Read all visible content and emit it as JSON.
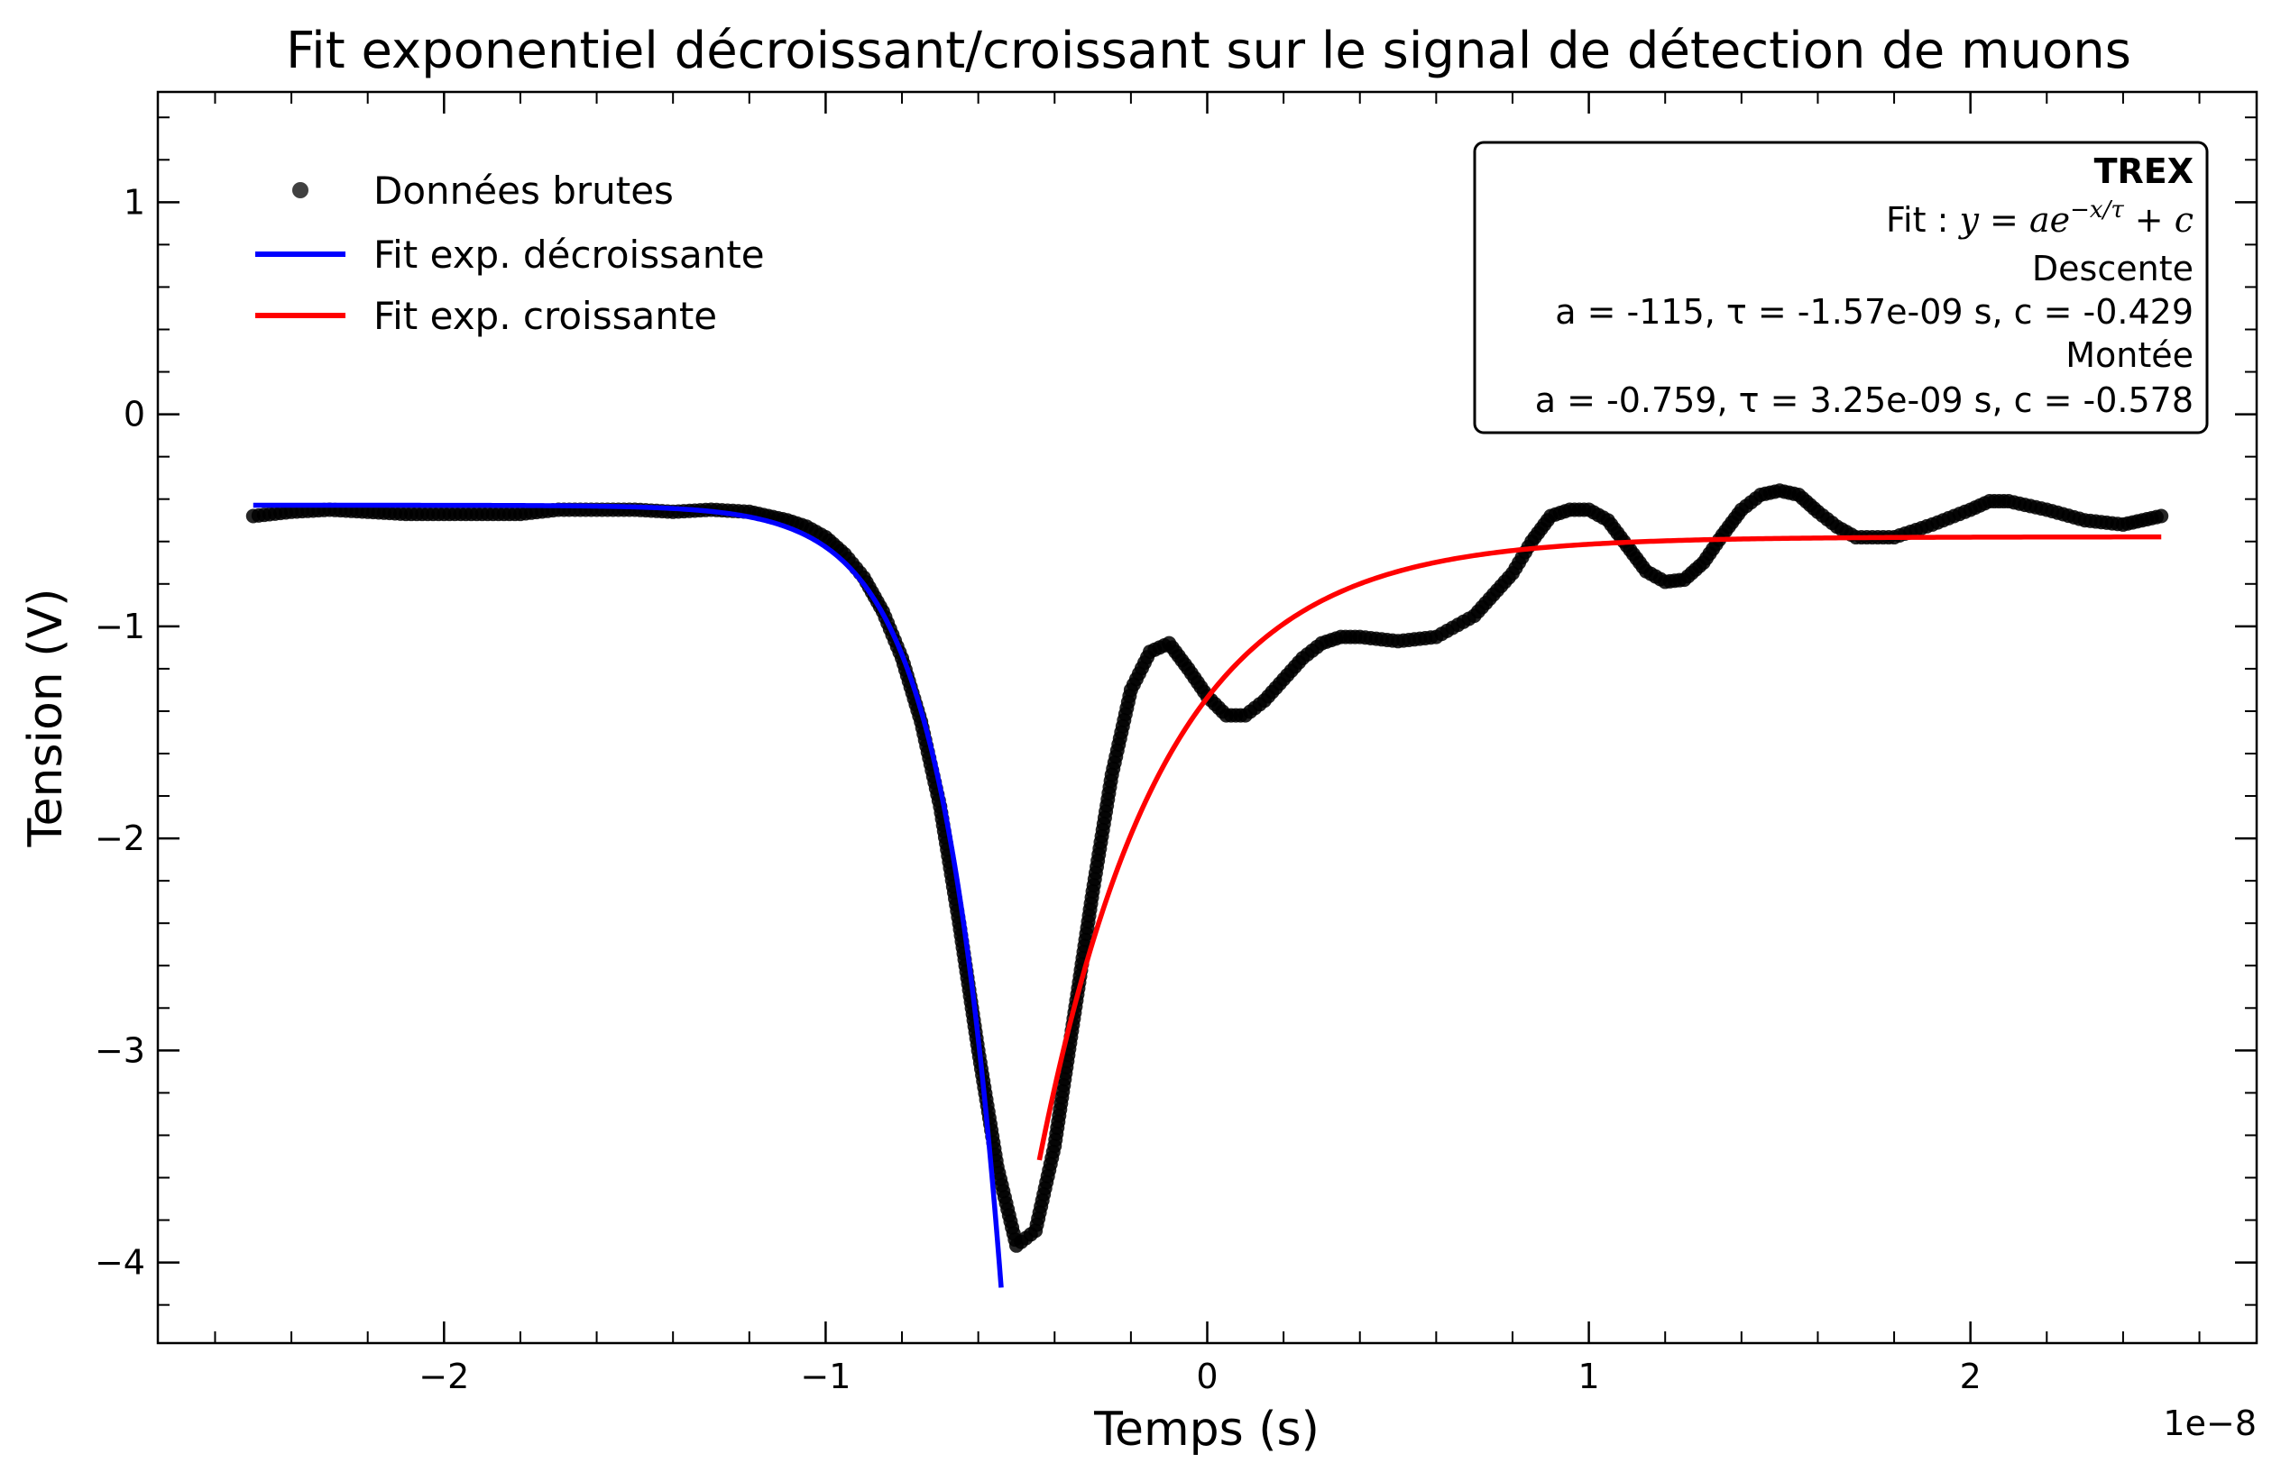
{
  "chart_data": {
    "type": "scatter",
    "title": "Fit exponentiel décroissant/croissant sur le signal de détection de muons",
    "xlabel": "Temps (s)",
    "ylabel": "Tension (V)",
    "x_offset_label": "1e−8",
    "xlim": [
      -2.75e-08,
      2.75e-08
    ],
    "ylim": [
      -4.38,
      1.52
    ],
    "x_ticks": [
      -2e-08,
      -1e-08,
      0,
      1e-08,
      2e-08
    ],
    "x_tick_labels": [
      "−2",
      "−1",
      "0",
      "1",
      "2"
    ],
    "y_ticks": [
      1,
      0,
      -1,
      -2,
      -3,
      -4
    ],
    "y_tick_labels": [
      "1",
      "0",
      "−1",
      "−2",
      "−3",
      "−4"
    ],
    "grid": false,
    "legend_position": "top-left",
    "series": [
      {
        "name": "Données brutes",
        "kind": "scatter",
        "color": "#000000",
        "points": [
          [
            -2.5e-08,
            -0.48
          ],
          [
            -2.4e-08,
            -0.46
          ],
          [
            -2.3e-08,
            -0.45
          ],
          [
            -2.2e-08,
            -0.46
          ],
          [
            -2.1e-08,
            -0.47
          ],
          [
            -2e-08,
            -0.47
          ],
          [
            -1.9e-08,
            -0.47
          ],
          [
            -1.8e-08,
            -0.47
          ],
          [
            -1.7e-08,
            -0.45
          ],
          [
            -1.6e-08,
            -0.45
          ],
          [
            -1.5e-08,
            -0.45
          ],
          [
            -1.4e-08,
            -0.46
          ],
          [
            -1.3e-08,
            -0.45
          ],
          [
            -1.2e-08,
            -0.46
          ],
          [
            -1.15e-08,
            -0.48
          ],
          [
            -1.1e-08,
            -0.5
          ],
          [
            -1.05e-08,
            -0.53
          ],
          [
            -1e-08,
            -0.58
          ],
          [
            -9.5e-09,
            -0.66
          ],
          [
            -9e-09,
            -0.77
          ],
          [
            -8.5e-09,
            -0.93
          ],
          [
            -8e-09,
            -1.15
          ],
          [
            -7.5e-09,
            -1.45
          ],
          [
            -7e-09,
            -1.85
          ],
          [
            -6.5e-09,
            -2.4
          ],
          [
            -6e-09,
            -3.0
          ],
          [
            -5.5e-09,
            -3.55
          ],
          [
            -5e-09,
            -3.92
          ],
          [
            -4.5e-09,
            -3.85
          ],
          [
            -4e-09,
            -3.45
          ],
          [
            -3.5e-09,
            -2.85
          ],
          [
            -3e-09,
            -2.25
          ],
          [
            -2.5e-09,
            -1.7
          ],
          [
            -2e-09,
            -1.3
          ],
          [
            -1.5e-09,
            -1.12
          ],
          [
            -1e-09,
            -1.08
          ],
          [
            -5e-10,
            -1.2
          ],
          [
            0.0,
            -1.33
          ],
          [
            5e-10,
            -1.42
          ],
          [
            1e-09,
            -1.42
          ],
          [
            1.5e-09,
            -1.35
          ],
          [
            2e-09,
            -1.25
          ],
          [
            2.5e-09,
            -1.15
          ],
          [
            3e-09,
            -1.08
          ],
          [
            3.5e-09,
            -1.05
          ],
          [
            4e-09,
            -1.05
          ],
          [
            5e-09,
            -1.07
          ],
          [
            6e-09,
            -1.05
          ],
          [
            7e-09,
            -0.95
          ],
          [
            8e-09,
            -0.75
          ],
          [
            8.5e-09,
            -0.6
          ],
          [
            9e-09,
            -0.48
          ],
          [
            9.5e-09,
            -0.45
          ],
          [
            1e-08,
            -0.45
          ],
          [
            1.05e-08,
            -0.5
          ],
          [
            1.1e-08,
            -0.62
          ],
          [
            1.15e-08,
            -0.74
          ],
          [
            1.2e-08,
            -0.79
          ],
          [
            1.25e-08,
            -0.78
          ],
          [
            1.3e-08,
            -0.7
          ],
          [
            1.35e-08,
            -0.57
          ],
          [
            1.4e-08,
            -0.45
          ],
          [
            1.45e-08,
            -0.38
          ],
          [
            1.5e-08,
            -0.36
          ],
          [
            1.55e-08,
            -0.38
          ],
          [
            1.6e-08,
            -0.46
          ],
          [
            1.65e-08,
            -0.53
          ],
          [
            1.7e-08,
            -0.58
          ],
          [
            1.8e-08,
            -0.58
          ],
          [
            1.9e-08,
            -0.52
          ],
          [
            2e-08,
            -0.45
          ],
          [
            2.05e-08,
            -0.41
          ],
          [
            2.1e-08,
            -0.41
          ],
          [
            2.2e-08,
            -0.45
          ],
          [
            2.3e-08,
            -0.5
          ],
          [
            2.4e-08,
            -0.52
          ],
          [
            2.45e-08,
            -0.5
          ],
          [
            2.5e-08,
            -0.48
          ]
        ]
      },
      {
        "name": "Fit exp. décroissante",
        "kind": "line",
        "color": "#0000ff",
        "model": "a*exp(-x/tau)+c",
        "params": {
          "a": -115,
          "tau": -1.57e-09,
          "c": -0.429
        },
        "x_range": [
          -2.5e-08,
          -5.4e-09
        ]
      },
      {
        "name": "Fit exp. croissante",
        "kind": "line",
        "color": "#ff0000",
        "model": "a*exp(-x/tau)+c",
        "params": {
          "a": -0.759,
          "tau": 3.25e-09,
          "c": -0.578
        },
        "x_range": [
          -4.4e-09,
          2.5e-08
        ]
      }
    ],
    "annotation_box": {
      "position": "top-right",
      "lines": [
        {
          "text": "TREX",
          "bold": true
        },
        {
          "text_prefix": "Fit : ",
          "formula": "y = ae^{−x/τ} + c"
        },
        {
          "text": "Descente"
        },
        {
          "text": "a = -115, τ = -1.57e-09 s, c = -0.429"
        },
        {
          "text": "Montée"
        },
        {
          "text": "a = -0.759, τ = 3.25e-09 s, c = -0.578"
        }
      ]
    }
  }
}
